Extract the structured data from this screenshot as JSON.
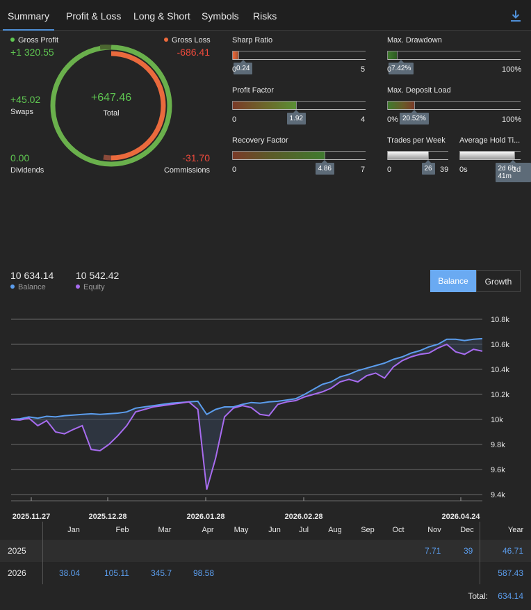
{
  "tabs": [
    "Summary",
    "Profit & Loss",
    "Long & Short",
    "Symbols",
    "Risks"
  ],
  "summary": {
    "gross_profit": {
      "label": "Gross Profit",
      "value": "+1 320.55"
    },
    "gross_loss": {
      "label": "Gross Loss",
      "value": "-686.41"
    },
    "swaps": {
      "label": "Swaps",
      "value": "+45.02"
    },
    "total": {
      "label": "Total",
      "value": "+647.46"
    },
    "dividends": {
      "label": "Dividends",
      "value": "0.00"
    },
    "commissions": {
      "label": "Commissions",
      "value": "-31.70"
    }
  },
  "meters": {
    "sharp_ratio": {
      "label": "Sharp Ratio",
      "value": 0.24,
      "value_label": "0.24",
      "min": "0",
      "max": "5",
      "max_value": 5
    },
    "profit_factor": {
      "label": "Profit Factor",
      "value": 1.92,
      "value_label": "1.92",
      "min": "0",
      "max": "4",
      "max_value": 4
    },
    "recovery_factor": {
      "label": "Recovery Factor",
      "value": 4.86,
      "value_label": "4.86",
      "min": "0",
      "max": "7",
      "max_value": 7
    },
    "max_drawdown": {
      "label": "Max. Drawdown",
      "value": 7.42,
      "value_label": "7.42%",
      "min": "0",
      "max": "100%",
      "max_value": 100
    },
    "max_deposit_load": {
      "label": "Max. Deposit Load",
      "value": 20.52,
      "value_label": "20.52%",
      "min": "0%",
      "max": "100%",
      "max_value": 100
    },
    "trades_per_week": {
      "label": "Trades per Week",
      "value": 26,
      "value_label": "26",
      "min": "0",
      "max": "39",
      "max_value": 39
    },
    "avg_hold_time": {
      "label": "Average Hold Ti...",
      "value": 0.9,
      "value_label": "2d 6h 41m",
      "min": "0s",
      "max": "3d"
    }
  },
  "balance": {
    "value": "10 634.14",
    "label": "Balance"
  },
  "equity": {
    "value": "10 542.42",
    "label": "Equity"
  },
  "toggle": {
    "balance": "Balance",
    "growth": "Growth"
  },
  "colors": {
    "balance": "#5b9ded",
    "equity": "#a86cf0",
    "gross_profit": "#5fc651",
    "gross_loss": "#ef6a3c",
    "accent": "#5b9ded"
  },
  "chart_data": {
    "type": "line",
    "y_ticks": [
      "10.8k",
      "10.6k",
      "10.4k",
      "10.2k",
      "10k",
      "9.8k",
      "9.6k",
      "9.4k"
    ],
    "ylim": [
      9400,
      10800
    ],
    "x_ticks": [
      "2025.11.27",
      "2025.12.28",
      "2026.01.28",
      "2026.02.28",
      "2026.04.24"
    ],
    "series": [
      {
        "name": "Balance",
        "values": [
          10000,
          10005,
          10020,
          10010,
          10025,
          10020,
          10030,
          10035,
          10040,
          10045,
          10040,
          10045,
          10050,
          10060,
          10090,
          10100,
          10110,
          10120,
          10130,
          10135,
          10140,
          10145,
          10040,
          10080,
          10100,
          10100,
          10120,
          10135,
          10130,
          10140,
          10145,
          10155,
          10165,
          10200,
          10240,
          10280,
          10300,
          10340,
          10360,
          10390,
          10410,
          10430,
          10450,
          10480,
          10500,
          10530,
          10550,
          10580,
          10600,
          10640,
          10640,
          10630,
          10640,
          10645
        ]
      },
      {
        "name": "Equity",
        "values": [
          10000,
          9995,
          10010,
          9950,
          9990,
          9900,
          9885,
          9920,
          9950,
          9760,
          9750,
          9800,
          9870,
          9950,
          10060,
          10080,
          10100,
          10110,
          10120,
          10130,
          10140,
          10080,
          9440,
          9690,
          10020,
          10090,
          10110,
          10095,
          10040,
          10030,
          10120,
          10140,
          10150,
          10180,
          10200,
          10220,
          10250,
          10300,
          10320,
          10300,
          10350,
          10370,
          10330,
          10420,
          10470,
          10500,
          10520,
          10530,
          10570,
          10600,
          10540,
          10520,
          10560,
          10545
        ]
      }
    ]
  },
  "table": {
    "months": [
      "Jan",
      "Feb",
      "Mar",
      "Apr",
      "May",
      "Jun",
      "Jul",
      "Aug",
      "Sep",
      "Oct",
      "Nov",
      "Dec",
      "Year"
    ],
    "rows": [
      {
        "year": "2025",
        "nov": "7.71",
        "dec": "39",
        "total": "46.71"
      },
      {
        "year": "2026",
        "jan": "38.04",
        "feb": "105.11",
        "mar": "345.7",
        "apr": "98.58",
        "total": "587.43"
      }
    ],
    "total_label": "Total:",
    "total_value": "634.14"
  }
}
